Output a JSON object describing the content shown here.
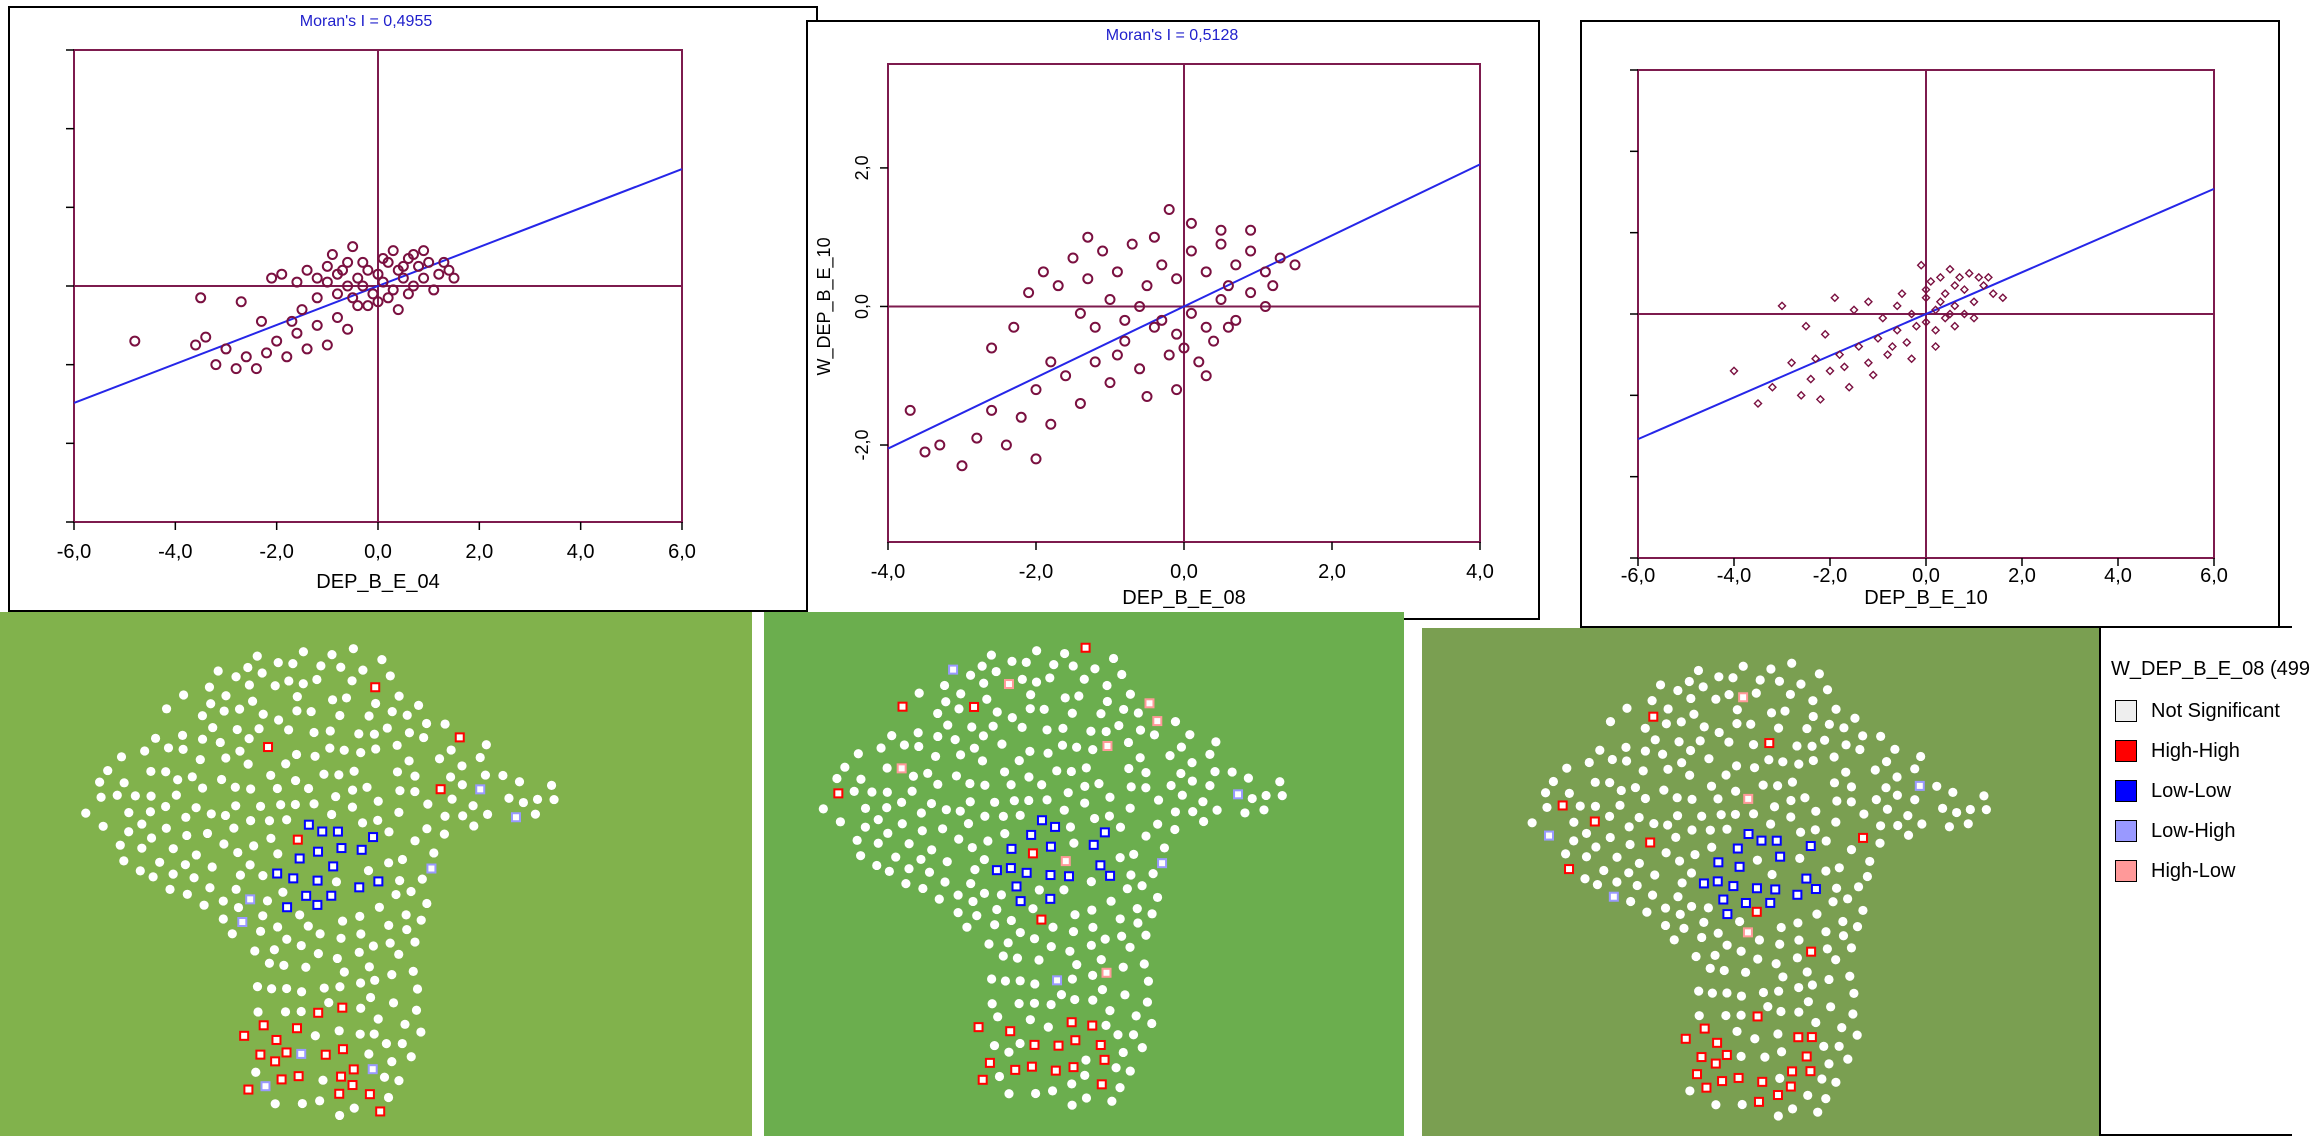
{
  "colors": {
    "frame": "#7d1b4e",
    "regression": "#2626e8",
    "point": "#7a1040",
    "title": "#2020cc",
    "not_significant": "#eeeeee",
    "high_high": "#ff0000",
    "low_low": "#0000ff",
    "low_high": "#9999ff",
    "high_low": "#ff9999"
  },
  "chart_data": [
    {
      "type": "scatter",
      "title": "Moran's I = 0,4955",
      "xlabel": "DEP_B_E_04",
      "ylabel": "",
      "xlim": [
        -6,
        6
      ],
      "ylim": [
        -6,
        6
      ],
      "xticks": [
        "-6,0",
        "-4,0",
        "-2,0",
        "0,0",
        "2,0",
        "4,0",
        "6,0"
      ],
      "yticks": [],
      "slope": 0.4955,
      "marker": "circle",
      "grid": false,
      "legend": "none",
      "points": [
        [
          -4.8,
          -1.4
        ],
        [
          -3.6,
          -1.5
        ],
        [
          -3.4,
          -1.3
        ],
        [
          -3.2,
          -2.0
        ],
        [
          -3.0,
          -1.6
        ],
        [
          -2.8,
          -2.1
        ],
        [
          -2.6,
          -1.8
        ],
        [
          -2.4,
          -2.1
        ],
        [
          -2.2,
          -1.7
        ],
        [
          -2.0,
          -1.4
        ],
        [
          -1.8,
          -1.8
        ],
        [
          -1.6,
          -1.2
        ],
        [
          -1.4,
          -1.6
        ],
        [
          -1.2,
          -1.0
        ],
        [
          -1.0,
          -1.5
        ],
        [
          -0.8,
          -0.8
        ],
        [
          -0.6,
          -1.1
        ],
        [
          -0.4,
          -0.5
        ],
        [
          -2.1,
          0.2
        ],
        [
          -1.9,
          0.3
        ],
        [
          -1.6,
          0.1
        ],
        [
          -1.4,
          0.4
        ],
        [
          -1.2,
          0.2
        ],
        [
          -1.0,
          0.5
        ],
        [
          -0.8,
          0.3
        ],
        [
          -0.6,
          0.6
        ],
        [
          -0.4,
          0.2
        ],
        [
          -0.2,
          0.4
        ],
        [
          0.0,
          0.3
        ],
        [
          0.2,
          0.6
        ],
        [
          0.4,
          0.4
        ],
        [
          0.6,
          0.7
        ],
        [
          0.8,
          0.5
        ],
        [
          1.0,
          0.6
        ],
        [
          1.2,
          0.3
        ],
        [
          1.4,
          0.4
        ],
        [
          -0.5,
          -0.3
        ],
        [
          -0.3,
          0.0
        ],
        [
          -0.1,
          -0.2
        ],
        [
          0.1,
          0.1
        ],
        [
          0.3,
          -0.1
        ],
        [
          0.5,
          0.2
        ],
        [
          0.7,
          0.0
        ],
        [
          0.9,
          0.2
        ],
        [
          1.1,
          -0.1
        ],
        [
          -0.2,
          -0.5
        ],
        [
          0.0,
          -0.4
        ],
        [
          0.2,
          -0.3
        ],
        [
          0.4,
          -0.6
        ],
        [
          0.6,
          -0.2
        ],
        [
          -0.6,
          0.0
        ],
        [
          -0.8,
          -0.2
        ],
        [
          -1.0,
          0.1
        ],
        [
          -1.2,
          -0.3
        ],
        [
          -0.9,
          0.8
        ],
        [
          -0.5,
          1.0
        ],
        [
          0.3,
          0.9
        ],
        [
          0.7,
          0.8
        ],
        [
          1.3,
          0.6
        ],
        [
          -3.5,
          -0.3
        ],
        [
          -2.7,
          -0.4
        ],
        [
          -1.5,
          -0.6
        ],
        [
          -1.7,
          -0.9
        ],
        [
          -2.3,
          -0.9
        ],
        [
          0.5,
          0.5
        ],
        [
          0.1,
          0.7
        ],
        [
          -0.3,
          0.6
        ],
        [
          0.9,
          0.9
        ],
        [
          1.5,
          0.2
        ],
        [
          -0.7,
          0.4
        ]
      ]
    },
    {
      "type": "scatter",
      "title": "Moran's I = 0,5128",
      "xlabel": "DEP_B_E_08",
      "ylabel": "W_DEP_B_E_10",
      "xlim": [
        -4,
        4
      ],
      "ylim": [
        -3.4,
        3.5
      ],
      "xticks": [
        "-4,0",
        "-2,0",
        "0,0",
        "2,0",
        "4,0"
      ],
      "yticks": [
        "-2,0",
        "0,0",
        "2,0"
      ],
      "slope": 0.5128,
      "marker": "circle",
      "grid": false,
      "legend": "none",
      "points": [
        [
          -3.7,
          -1.5
        ],
        [
          -3.5,
          -2.1
        ],
        [
          -3.0,
          -2.3
        ],
        [
          -2.8,
          -1.9
        ],
        [
          -2.6,
          -1.5
        ],
        [
          -2.4,
          -2.0
        ],
        [
          -2.2,
          -1.6
        ],
        [
          -2.0,
          -1.2
        ],
        [
          -1.8,
          -1.7
        ],
        [
          -1.6,
          -1.0
        ],
        [
          -1.4,
          -1.4
        ],
        [
          -1.2,
          -0.8
        ],
        [
          -1.0,
          -1.1
        ],
        [
          -0.8,
          -0.5
        ],
        [
          -0.6,
          -0.9
        ],
        [
          -0.4,
          -0.3
        ],
        [
          -2.1,
          0.2
        ],
        [
          -1.9,
          0.5
        ],
        [
          -1.7,
          0.3
        ],
        [
          -1.5,
          0.7
        ],
        [
          -1.3,
          0.4
        ],
        [
          -1.1,
          0.8
        ],
        [
          -0.9,
          0.5
        ],
        [
          -0.7,
          0.9
        ],
        [
          -0.5,
          0.3
        ],
        [
          -0.3,
          0.6
        ],
        [
          -0.1,
          0.4
        ],
        [
          0.1,
          0.8
        ],
        [
          0.3,
          0.5
        ],
        [
          0.5,
          0.9
        ],
        [
          0.7,
          0.6
        ],
        [
          0.9,
          0.8
        ],
        [
          1.1,
          0.5
        ],
        [
          1.3,
          0.7
        ],
        [
          1.5,
          0.6
        ],
        [
          -0.3,
          -0.2
        ],
        [
          -0.1,
          -0.4
        ],
        [
          0.1,
          -0.1
        ],
        [
          0.3,
          -0.3
        ],
        [
          0.5,
          0.1
        ],
        [
          0.7,
          -0.2
        ],
        [
          0.9,
          0.2
        ],
        [
          1.1,
          0.0
        ],
        [
          -0.2,
          -0.7
        ],
        [
          0.0,
          -0.6
        ],
        [
          0.2,
          -0.8
        ],
        [
          0.4,
          -0.5
        ],
        [
          0.6,
          -0.3
        ],
        [
          -0.6,
          0.0
        ],
        [
          -0.8,
          -0.2
        ],
        [
          -1.0,
          0.1
        ],
        [
          -1.2,
          -0.3
        ],
        [
          -2.6,
          -0.6
        ],
        [
          -2.3,
          -0.3
        ],
        [
          -1.8,
          -0.8
        ],
        [
          -1.4,
          -0.1
        ],
        [
          -0.2,
          1.4
        ],
        [
          0.1,
          1.2
        ],
        [
          0.5,
          1.1
        ],
        [
          0.9,
          1.1
        ],
        [
          -0.4,
          1.0
        ],
        [
          -1.3,
          1.0
        ],
        [
          -0.1,
          -1.2
        ],
        [
          0.3,
          -1.0
        ],
        [
          -3.3,
          -2.0
        ],
        [
          -2.0,
          -2.2
        ],
        [
          -0.9,
          -0.7
        ],
        [
          -0.5,
          -1.3
        ],
        [
          0.6,
          0.3
        ],
        [
          1.2,
          0.3
        ]
      ]
    },
    {
      "type": "scatter",
      "title": "",
      "xlabel": "DEP_B_E_10",
      "ylabel": "",
      "xlim": [
        -6,
        6
      ],
      "ylim": [
        -6,
        6
      ],
      "xticks": [
        "-6,0",
        "-4,0",
        "-2,0",
        "0,0",
        "2,0",
        "4,0",
        "6,0"
      ],
      "yticks": [],
      "slope": 0.5128,
      "marker": "diamond",
      "grid": false,
      "legend": "none",
      "points": [
        [
          -4.0,
          -1.4
        ],
        [
          -3.5,
          -2.2
        ],
        [
          -3.2,
          -1.8
        ],
        [
          -2.8,
          -1.2
        ],
        [
          -2.6,
          -2.0
        ],
        [
          -2.4,
          -1.6
        ],
        [
          -2.2,
          -2.1
        ],
        [
          -2.0,
          -1.4
        ],
        [
          -1.8,
          -1.0
        ],
        [
          -1.6,
          -1.8
        ],
        [
          -1.4,
          -0.8
        ],
        [
          -1.2,
          -1.2
        ],
        [
          -1.0,
          -0.6
        ],
        [
          -0.8,
          -1.0
        ],
        [
          -0.6,
          -0.4
        ],
        [
          -0.4,
          -0.7
        ],
        [
          -3.0,
          0.2
        ],
        [
          -2.5,
          -0.3
        ],
        [
          -2.1,
          -0.5
        ],
        [
          -1.9,
          0.4
        ],
        [
          -1.5,
          0.1
        ],
        [
          -1.2,
          0.3
        ],
        [
          -0.9,
          -0.1
        ],
        [
          -0.6,
          0.2
        ],
        [
          -0.3,
          0.0
        ],
        [
          0.0,
          0.4
        ],
        [
          0.2,
          0.1
        ],
        [
          0.4,
          0.5
        ],
        [
          0.6,
          0.2
        ],
        [
          0.8,
          0.6
        ],
        [
          1.0,
          0.3
        ],
        [
          1.2,
          0.7
        ],
        [
          1.4,
          0.5
        ],
        [
          1.6,
          0.4
        ],
        [
          -0.2,
          -0.3
        ],
        [
          0.0,
          -0.2
        ],
        [
          0.2,
          -0.4
        ],
        [
          0.4,
          -0.1
        ],
        [
          0.6,
          -0.3
        ],
        [
          0.8,
          0.0
        ],
        [
          1.0,
          -0.1
        ],
        [
          0.1,
          0.8
        ],
        [
          0.3,
          0.9
        ],
        [
          0.5,
          1.1
        ],
        [
          0.7,
          0.9
        ],
        [
          -0.1,
          1.2
        ],
        [
          0.0,
          0.6
        ],
        [
          0.5,
          0.0
        ],
        [
          0.3,
          0.3
        ],
        [
          -0.5,
          0.5
        ],
        [
          0.9,
          1.0
        ],
        [
          1.3,
          0.9
        ],
        [
          -0.7,
          -0.8
        ],
        [
          -1.1,
          -1.5
        ],
        [
          -1.7,
          -1.3
        ],
        [
          -2.3,
          -1.1
        ],
        [
          0.2,
          -0.8
        ],
        [
          -0.3,
          -1.1
        ],
        [
          1.1,
          0.9
        ],
        [
          0.6,
          0.7
        ]
      ]
    }
  ],
  "maps": [
    {
      "fill": "#81b24c",
      "map_scale": 1.0
    },
    {
      "fill": "#6bae4e",
      "map_scale": 0.98
    },
    {
      "fill": "#7a9f51",
      "map_scale": 0.97
    }
  ],
  "legend": {
    "title": "W_DEP_B_E_08 (499",
    "items": [
      {
        "label": "Not Significant",
        "color": "#eeeeee"
      },
      {
        "label": "High-High",
        "color": "#ff0000"
      },
      {
        "label": "Low-Low",
        "color": "#0000ff"
      },
      {
        "label": "Low-High",
        "color": "#9999ff"
      },
      {
        "label": "High-Low",
        "color": "#ff9999"
      }
    ]
  }
}
